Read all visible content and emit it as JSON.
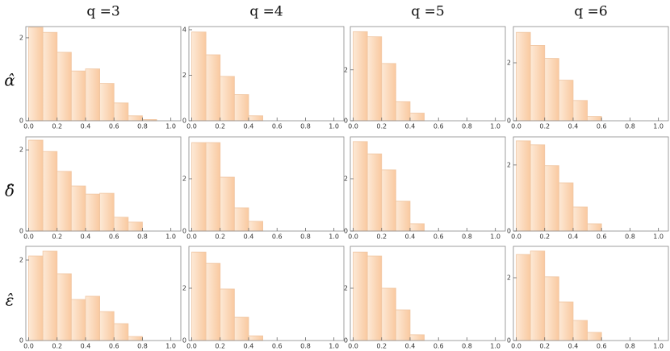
{
  "column_titles": [
    "q =3",
    "q =4",
    "q =5",
    "q =6"
  ],
  "row_labels": [
    "α̂",
    "δ̂",
    "ε̂"
  ],
  "chart_data": [
    {
      "type": "histogram",
      "color": "#fcd9b8",
      "bins": [
        0,
        0.1,
        0.2,
        0.3,
        0.4,
        0.5,
        0.6,
        0.7,
        0.8,
        0.9,
        1.0
      ],
      "values": [
        2.25,
        2.13,
        1.65,
        1.2,
        1.25,
        0.9,
        0.43,
        0.12,
        0.03,
        0
      ],
      "xlim": [
        -0.02,
        1.07
      ],
      "ylim": [
        0,
        2.27
      ],
      "yticks": [
        0,
        2
      ],
      "xticks": [
        {
          "value": 0,
          "label": "0.0"
        },
        {
          "value": 0.2,
          "label": "0.2"
        },
        {
          "value": 0.4,
          "label": "0.4"
        },
        {
          "value": 0.6,
          "label": "0.6"
        },
        {
          "value": 0.8,
          "label": "0.8"
        },
        {
          "value": 1,
          "label": "1.0"
        }
      ]
    },
    {
      "type": "histogram",
      "color": "#fcd9b8",
      "bins": [
        0,
        0.1,
        0.2,
        0.3,
        0.4,
        0.5,
        0.6,
        0.7,
        0.8,
        0.9,
        1.0
      ],
      "values": [
        3.9,
        2.9,
        1.95,
        1.15,
        0.22,
        0,
        0,
        0,
        0,
        0
      ],
      "xlim": [
        -0.02,
        1.07
      ],
      "ylim": [
        0,
        4.14
      ],
      "yticks": [
        0,
        2,
        4
      ],
      "xticks": [
        {
          "value": 0,
          "label": "0.0"
        },
        {
          "value": 0.2,
          "label": "0.2"
        },
        {
          "value": 0.4,
          "label": "0.4"
        },
        {
          "value": 0.6,
          "label": "0.6"
        },
        {
          "value": 0.8,
          "label": "0.8"
        },
        {
          "value": 1,
          "label": "1.0"
        }
      ]
    },
    {
      "type": "histogram",
      "color": "#fcd9b8",
      "bins": [
        0,
        0.1,
        0.2,
        0.3,
        0.4,
        0.5,
        0.6,
        0.7,
        0.8,
        0.9,
        1.0
      ],
      "values": [
        3.5,
        3.3,
        2.25,
        0.75,
        0.3,
        0,
        0,
        0,
        0,
        0
      ],
      "xlim": [
        -0.02,
        1.07
      ],
      "ylim": [
        0,
        3.7
      ],
      "yticks": [
        0,
        2
      ],
      "xticks": [
        {
          "value": 0,
          "label": "0.0"
        },
        {
          "value": 0.2,
          "label": "0.2"
        },
        {
          "value": 0.4,
          "label": "0.4"
        },
        {
          "value": 0.6,
          "label": "0.6"
        },
        {
          "value": 0.8,
          "label": "0.8"
        },
        {
          "value": 1,
          "label": "1.0"
        }
      ]
    },
    {
      "type": "histogram",
      "color": "#fcd9b8",
      "bins": [
        0,
        0.1,
        0.2,
        0.3,
        0.4,
        0.5,
        0.6,
        0.7,
        0.8,
        0.9,
        1.0
      ],
      "values": [
        3.05,
        2.6,
        2.15,
        1.4,
        0.7,
        0.15,
        0,
        0,
        0,
        0
      ],
      "xlim": [
        -0.02,
        1.07
      ],
      "ylim": [
        0,
        3.25
      ],
      "yticks": [
        0,
        2
      ],
      "xticks": [
        {
          "value": 0,
          "label": "0.0"
        },
        {
          "value": 0.2,
          "label": "0.2"
        },
        {
          "value": 0.4,
          "label": "0.4"
        },
        {
          "value": 0.6,
          "label": "0.6"
        },
        {
          "value": 0.8,
          "label": "0.8"
        },
        {
          "value": 1,
          "label": "1.0"
        }
      ]
    },
    {
      "type": "histogram",
      "color": "#fcd9b8",
      "bins": [
        0,
        0.1,
        0.2,
        0.3,
        0.4,
        0.5,
        0.6,
        0.7,
        0.8,
        0.9,
        1.0
      ],
      "values": [
        2.24,
        1.96,
        1.47,
        1.11,
        0.91,
        0.93,
        0.34,
        0.22,
        0,
        0
      ],
      "xlim": [
        -0.02,
        1.07
      ],
      "ylim": [
        0,
        2.32
      ],
      "yticks": [
        0,
        2
      ],
      "xticks": [
        {
          "value": 0,
          "label": "0.0"
        },
        {
          "value": 0.2,
          "label": "0.2"
        },
        {
          "value": 0.4,
          "label": "0.4"
        },
        {
          "value": 0.6,
          "label": "0.6"
        },
        {
          "value": 0.8,
          "label": "0.8"
        },
        {
          "value": 1,
          "label": "1.0"
        }
      ]
    },
    {
      "type": "histogram",
      "color": "#fcd9b8",
      "bins": [
        0,
        0.1,
        0.2,
        0.3,
        0.4,
        0.5,
        0.6,
        0.7,
        0.8,
        0.9,
        1.0
      ],
      "values": [
        3.38,
        3.38,
        2.06,
        0.89,
        0.37,
        0,
        0,
        0,
        0,
        0
      ],
      "xlim": [
        -0.02,
        1.07
      ],
      "ylim": [
        0,
        3.6
      ],
      "yticks": [
        0,
        2
      ],
      "xticks": [
        {
          "value": 0,
          "label": "0.0"
        },
        {
          "value": 0.2,
          "label": "0.2"
        },
        {
          "value": 0.4,
          "label": "0.4"
        },
        {
          "value": 0.6,
          "label": "0.6"
        },
        {
          "value": 0.8,
          "label": "0.8"
        },
        {
          "value": 1,
          "label": "1.0"
        }
      ]
    },
    {
      "type": "histogram",
      "color": "#fcd9b8",
      "bins": [
        0,
        0.1,
        0.2,
        0.3,
        0.4,
        0.5,
        0.6,
        0.7,
        0.8,
        0.9,
        1.0
      ],
      "values": [
        3.42,
        2.95,
        2.34,
        1.14,
        0.28,
        0,
        0,
        0,
        0,
        0
      ],
      "xlim": [
        -0.02,
        1.07
      ],
      "ylim": [
        0,
        3.6
      ],
      "yticks": [
        0,
        2
      ],
      "xticks": [
        {
          "value": 0,
          "label": "0.0"
        },
        {
          "value": 0.2,
          "label": "0.2"
        },
        {
          "value": 0.4,
          "label": "0.4"
        },
        {
          "value": 0.6,
          "label": "0.6"
        },
        {
          "value": 0.8,
          "label": "0.8"
        },
        {
          "value": 1,
          "label": "1.0"
        }
      ]
    },
    {
      "type": "histogram",
      "color": "#fcd9b8",
      "bins": [
        0,
        0.1,
        0.2,
        0.3,
        0.4,
        0.5,
        0.6,
        0.7,
        0.8,
        0.9,
        1.0
      ],
      "values": [
        2.73,
        2.61,
        1.98,
        1.46,
        0.73,
        0.22,
        0,
        0,
        0,
        0
      ],
      "xlim": [
        -0.02,
        1.07
      ],
      "ylim": [
        0,
        2.85
      ],
      "yticks": [
        0,
        2
      ],
      "xticks": [
        {
          "value": 0,
          "label": "0.0"
        },
        {
          "value": 0.2,
          "label": "0.2"
        },
        {
          "value": 0.4,
          "label": "0.4"
        },
        {
          "value": 0.6,
          "label": "0.6"
        },
        {
          "value": 0.8,
          "label": "0.8"
        },
        {
          "value": 1,
          "label": "1.0"
        }
      ]
    },
    {
      "type": "histogram",
      "color": "#fcd9b8",
      "bins": [
        0,
        0.1,
        0.2,
        0.3,
        0.4,
        0.5,
        0.6,
        0.7,
        0.8,
        0.9,
        1.0
      ],
      "values": [
        2.1,
        2.22,
        1.66,
        1.02,
        1.1,
        0.72,
        0.42,
        0.1,
        0,
        0
      ],
      "xlim": [
        -0.02,
        1.07
      ],
      "ylim": [
        0,
        2.34
      ],
      "yticks": [
        0,
        2
      ],
      "xticks": [
        {
          "value": 0,
          "label": "0.0"
        },
        {
          "value": 0.2,
          "label": "0.2"
        },
        {
          "value": 0.4,
          "label": "0.4"
        },
        {
          "value": 0.6,
          "label": "0.6"
        },
        {
          "value": 0.8,
          "label": "0.8"
        },
        {
          "value": 1,
          "label": "1.0"
        }
      ]
    },
    {
      "type": "histogram",
      "color": "#fcd9b8",
      "bins": [
        0,
        0.1,
        0.2,
        0.3,
        0.4,
        0.5,
        0.6,
        0.7,
        0.8,
        0.9,
        1.0
      ],
      "values": [
        3.38,
        2.95,
        1.97,
        0.89,
        0.18,
        0,
        0,
        0,
        0,
        0
      ],
      "xlim": [
        -0.02,
        1.07
      ],
      "ylim": [
        0,
        3.6
      ],
      "yticks": [
        0,
        2
      ],
      "xticks": [
        {
          "value": 0,
          "label": "0.0"
        },
        {
          "value": 0.2,
          "label": "0.2"
        },
        {
          "value": 0.4,
          "label": "0.4"
        },
        {
          "value": 0.6,
          "label": "0.6"
        },
        {
          "value": 0.8,
          "label": "0.8"
        },
        {
          "value": 1,
          "label": "1.0"
        }
      ]
    },
    {
      "type": "histogram",
      "color": "#fcd9b8",
      "bins": [
        0,
        0.1,
        0.2,
        0.3,
        0.4,
        0.5,
        0.6,
        0.7,
        0.8,
        0.9,
        1.0
      ],
      "values": [
        3.38,
        3.23,
        2.0,
        1.17,
        0.22,
        0,
        0,
        0,
        0,
        0
      ],
      "xlim": [
        -0.02,
        1.07
      ],
      "ylim": [
        0,
        3.6
      ],
      "yticks": [
        0,
        2
      ],
      "xticks": [
        {
          "value": 0,
          "label": "0.0"
        },
        {
          "value": 0.2,
          "label": "0.2"
        },
        {
          "value": 0.4,
          "label": "0.4"
        },
        {
          "value": 0.6,
          "label": "0.6"
        },
        {
          "value": 0.8,
          "label": "0.8"
        },
        {
          "value": 1,
          "label": "1.0"
        }
      ]
    },
    {
      "type": "histogram",
      "color": "#fcd9b8",
      "bins": [
        0,
        0.1,
        0.2,
        0.3,
        0.4,
        0.5,
        0.6,
        0.7,
        0.8,
        0.9,
        1.0
      ],
      "values": [
        2.74,
        2.85,
        2.03,
        1.23,
        0.64,
        0.26,
        0,
        0,
        0,
        0
      ],
      "xlim": [
        -0.02,
        1.07
      ],
      "ylim": [
        0,
        3.0
      ],
      "yticks": [
        0,
        2
      ],
      "xticks": [
        {
          "value": 0,
          "label": "0.0"
        },
        {
          "value": 0.2,
          "label": "0.2"
        },
        {
          "value": 0.4,
          "label": "0.4"
        },
        {
          "value": 0.6,
          "label": "0.6"
        },
        {
          "value": 0.8,
          "label": "0.8"
        },
        {
          "value": 1,
          "label": "1.0"
        }
      ]
    }
  ]
}
